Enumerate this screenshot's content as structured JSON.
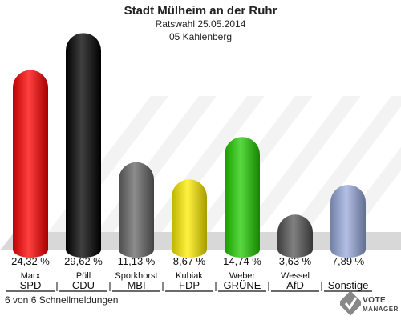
{
  "header": {
    "title": "Stadt Mülheim an der Ruhr",
    "subtitle": "Ratswahl 25.05.2014",
    "district": "05 Kahlenberg"
  },
  "footer": {
    "note": "6 von 6 Schnellmeldungen"
  },
  "logo": {
    "line1": "VOTE",
    "line2": "MANAGER"
  },
  "chart_data": {
    "type": "bar",
    "categories": [
      "SPD",
      "CDU",
      "MBI",
      "FDP",
      "GRÜNE",
      "AfD",
      "Sonstige"
    ],
    "candidates": [
      "Marx",
      "Püll",
      "Sporkhorst",
      "Kubiak",
      "Weber",
      "Wessel",
      ""
    ],
    "value_labels": [
      "24,32 %",
      "29,62 %",
      "11,13 %",
      "8,67 %",
      "14,74 %",
      "3,63 %",
      "7,89 %"
    ],
    "values": [
      24.32,
      29.62,
      11.13,
      8.67,
      14.74,
      3.63,
      7.89
    ],
    "colors": [
      "#ff0000",
      "#000000",
      "#666666",
      "#ffee00",
      "#22cc00",
      "#555555",
      "#99aadd"
    ],
    "ylim": [
      0,
      30
    ],
    "grid": false,
    "legend": "none"
  }
}
